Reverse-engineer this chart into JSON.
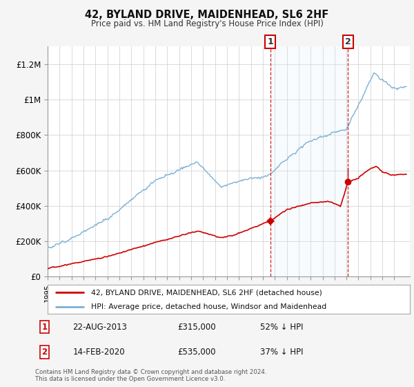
{
  "title": "42, BYLAND DRIVE, MAIDENHEAD, SL6 2HF",
  "subtitle": "Price paid vs. HM Land Registry's House Price Index (HPI)",
  "legend_line1": "42, BYLAND DRIVE, MAIDENHEAD, SL6 2HF (detached house)",
  "legend_line2": "HPI: Average price, detached house, Windsor and Maidenhead",
  "annotation1_label": "1",
  "annotation1_date": "22-AUG-2013",
  "annotation1_price": "£315,000",
  "annotation1_hpi": "52% ↓ HPI",
  "annotation1_year": 2013.62,
  "annotation1_value": 315000,
  "annotation2_label": "2",
  "annotation2_date": "14-FEB-2020",
  "annotation2_price": "£535,000",
  "annotation2_hpi": "37% ↓ HPI",
  "annotation2_year": 2020.12,
  "annotation2_value": 535000,
  "hpi_color": "#7ab0d4",
  "hpi_fill_color": "#ddeef7",
  "price_color": "#cc0000",
  "background_color": "#f5f5f5",
  "plot_bg_color": "#ffffff",
  "footer": "Contains HM Land Registry data © Crown copyright and database right 2024.\nThis data is licensed under the Open Government Licence v3.0.",
  "ylim": [
    0,
    1300000
  ],
  "yticks": [
    0,
    200000,
    400000,
    600000,
    800000,
    1000000,
    1200000
  ],
  "ytick_labels": [
    "£0",
    "£200K",
    "£400K",
    "£600K",
    "£800K",
    "£1M",
    "£1.2M"
  ],
  "xstart": 1995,
  "xend": 2025
}
